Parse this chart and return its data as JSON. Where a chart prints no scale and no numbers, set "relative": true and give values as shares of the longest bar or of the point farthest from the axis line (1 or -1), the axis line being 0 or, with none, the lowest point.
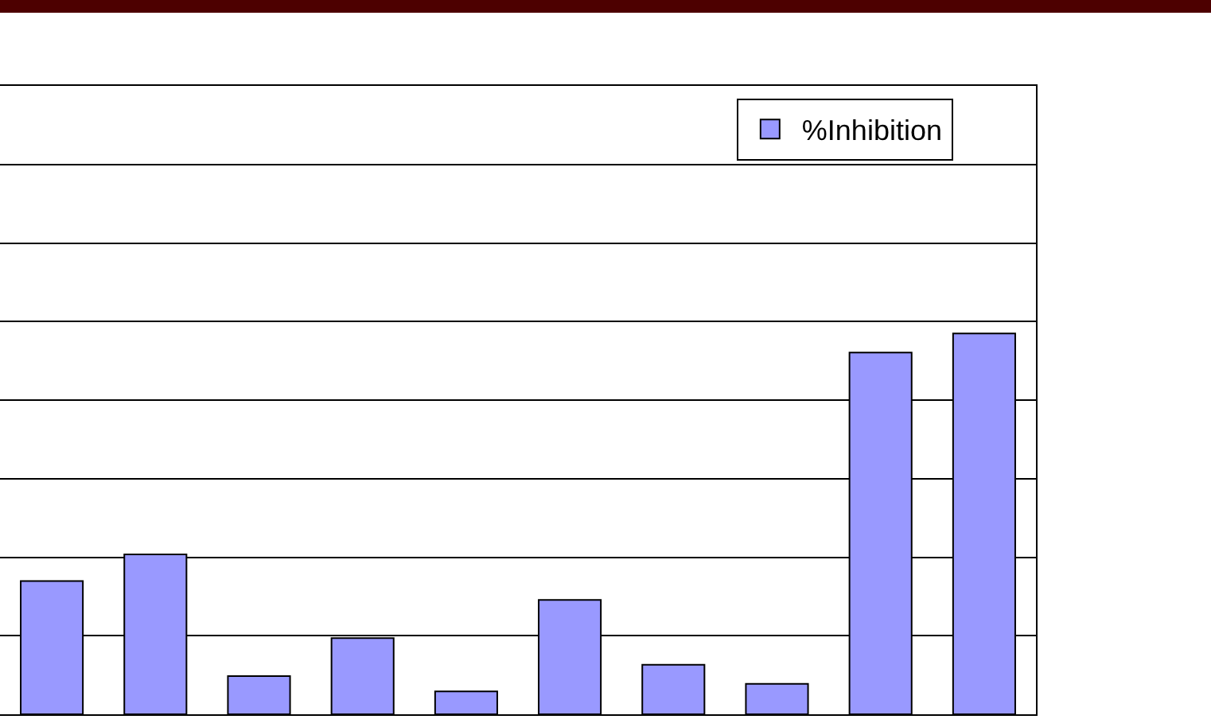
{
  "chart_data": {
    "type": "bar",
    "relative": true,
    "categories": [
      null,
      null,
      null,
      null,
      null,
      null,
      null,
      null,
      null,
      null
    ],
    "series": [
      {
        "name": "%Inhibition",
        "color": "#9999ff",
        "values": [
          0.35,
          0.42,
          0.1,
          0.2,
          0.06,
          0.3,
          0.13,
          0.08,
          0.95,
          1
        ]
      }
    ],
    "grid": "y",
    "legend": "top right"
  }
}
